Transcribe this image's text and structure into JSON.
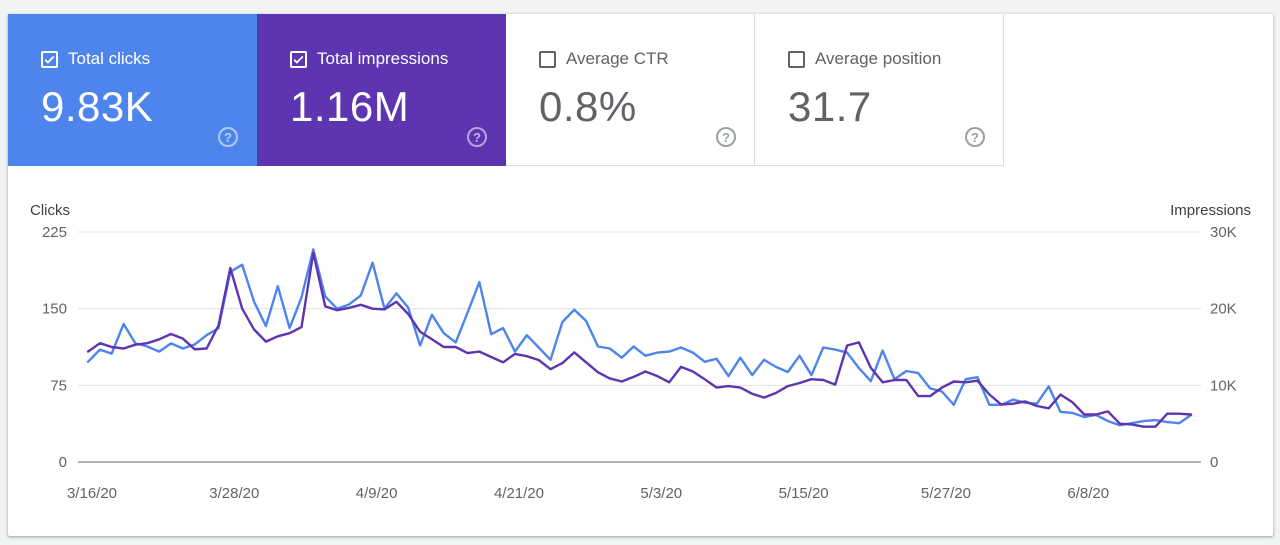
{
  "metrics": [
    {
      "label": "Total clicks",
      "value": "9.83K",
      "checked": true,
      "color": "#4e85ec"
    },
    {
      "label": "Total impressions",
      "value": "1.16M",
      "checked": true,
      "color": "#5e35b1"
    },
    {
      "label": "Average CTR",
      "value": "0.8%",
      "checked": false,
      "color": "#ffffff"
    },
    {
      "label": "Average position",
      "value": "31.7",
      "checked": false,
      "color": "#ffffff"
    }
  ],
  "help_glyph": "?",
  "chart_data": {
    "type": "line",
    "y_left_label": "Clicks",
    "y_right_label": "Impressions",
    "y_left_ticks": [
      "0",
      "75",
      "150",
      "225"
    ],
    "y_right_ticks": [
      "0",
      "10K",
      "20K",
      "30K"
    ],
    "ylim_left": [
      0,
      225
    ],
    "ylim_right": [
      0,
      30000
    ],
    "x_ticks": [
      "3/16/20",
      "3/28/20",
      "4/9/20",
      "4/21/20",
      "5/3/20",
      "5/15/20",
      "5/27/20",
      "6/8/20"
    ],
    "grid": true,
    "series": [
      {
        "name": "Clicks",
        "axis": "left",
        "color": "#4e85ec",
        "values": [
          98,
          110,
          106,
          135,
          116,
          113,
          108,
          116,
          111,
          115,
          124,
          131,
          186,
          193,
          157,
          133,
          172,
          131,
          161,
          208,
          162,
          150,
          154,
          163,
          195,
          150,
          165,
          151,
          114,
          144,
          126,
          117,
          146,
          176,
          125,
          131,
          108,
          124,
          112,
          100,
          137,
          149,
          138,
          113,
          111,
          102,
          113,
          104,
          107,
          108,
          112,
          107,
          98,
          101,
          84,
          102,
          85,
          100,
          93,
          88,
          104,
          85,
          112,
          110,
          107,
          92,
          79,
          109,
          81,
          89,
          87,
          72,
          69,
          56,
          81,
          83,
          56,
          56,
          61,
          58,
          57,
          74,
          49,
          48,
          44,
          46,
          40,
          36,
          38,
          40,
          41,
          39,
          38,
          46
        ]
      },
      {
        "name": "Impressions",
        "axis": "right",
        "color": "#5e35b1",
        "values": [
          14400,
          15500,
          15000,
          14800,
          15300,
          15500,
          16000,
          16700,
          16100,
          14700,
          14800,
          17800,
          25300,
          20000,
          17300,
          15700,
          16400,
          16800,
          17600,
          27300,
          20300,
          19800,
          20100,
          20500,
          20000,
          19900,
          20900,
          19300,
          17000,
          16000,
          15000,
          15000,
          14200,
          14400,
          13700,
          13000,
          14100,
          13800,
          13300,
          12100,
          12900,
          14300,
          13000,
          11700,
          10900,
          10500,
          11100,
          11800,
          11200,
          10400,
          12400,
          11800,
          10800,
          9700,
          9900,
          9700,
          8900,
          8400,
          9000,
          9900,
          10300,
          10800,
          10700,
          10100,
          15200,
          15600,
          12300,
          10400,
          10700,
          10700,
          8600,
          8600,
          9700,
          10500,
          10400,
          10600,
          8800,
          7500,
          7600,
          7900,
          7300,
          7000,
          8800,
          7800,
          6200,
          6200,
          6600,
          5000,
          4900,
          4600,
          4600,
          6300,
          6300,
          6200
        ]
      }
    ]
  }
}
